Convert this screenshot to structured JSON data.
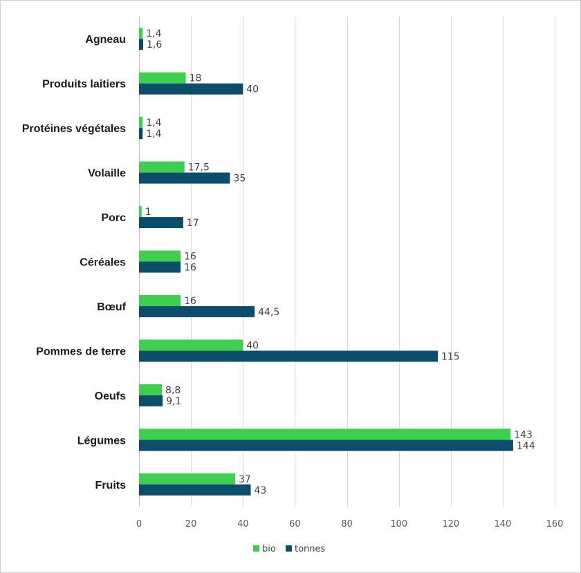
{
  "chart_data": {
    "type": "bar",
    "orientation": "horizontal",
    "title": "",
    "xlabel": "",
    "ylabel": "",
    "xlim": [
      0,
      160
    ],
    "ticks": [
      0,
      20,
      40,
      60,
      80,
      100,
      120,
      140,
      160
    ],
    "grid": true,
    "legend_position": "bottom",
    "categories": [
      "Agneau",
      "Produits laitiers",
      "Protéines végétales",
      "Volaille",
      "Porc",
      "Céréales",
      "Bœuf",
      "Pommes de terre",
      "Oeufs",
      "Légumes",
      "Fruits"
    ],
    "series": [
      {
        "name": "bio",
        "color": "#3ecf4f",
        "values": [
          1.4,
          18,
          1.4,
          17.5,
          1,
          16,
          16,
          40,
          8.8,
          143,
          37
        ],
        "labels": [
          "1,4",
          "18",
          "1,4",
          "17,5",
          "1",
          "16",
          "16",
          "40",
          "8,8",
          "143",
          "37"
        ]
      },
      {
        "name": "tonnes",
        "color": "#0b4d6b",
        "values": [
          1.6,
          40,
          1.4,
          35,
          17,
          16,
          44.5,
          115,
          9.1,
          144,
          43
        ],
        "labels": [
          "1,6",
          "40",
          "1,4",
          "35",
          "17",
          "16",
          "44,5",
          "115",
          "9,1",
          "144",
          "43"
        ]
      }
    ]
  }
}
